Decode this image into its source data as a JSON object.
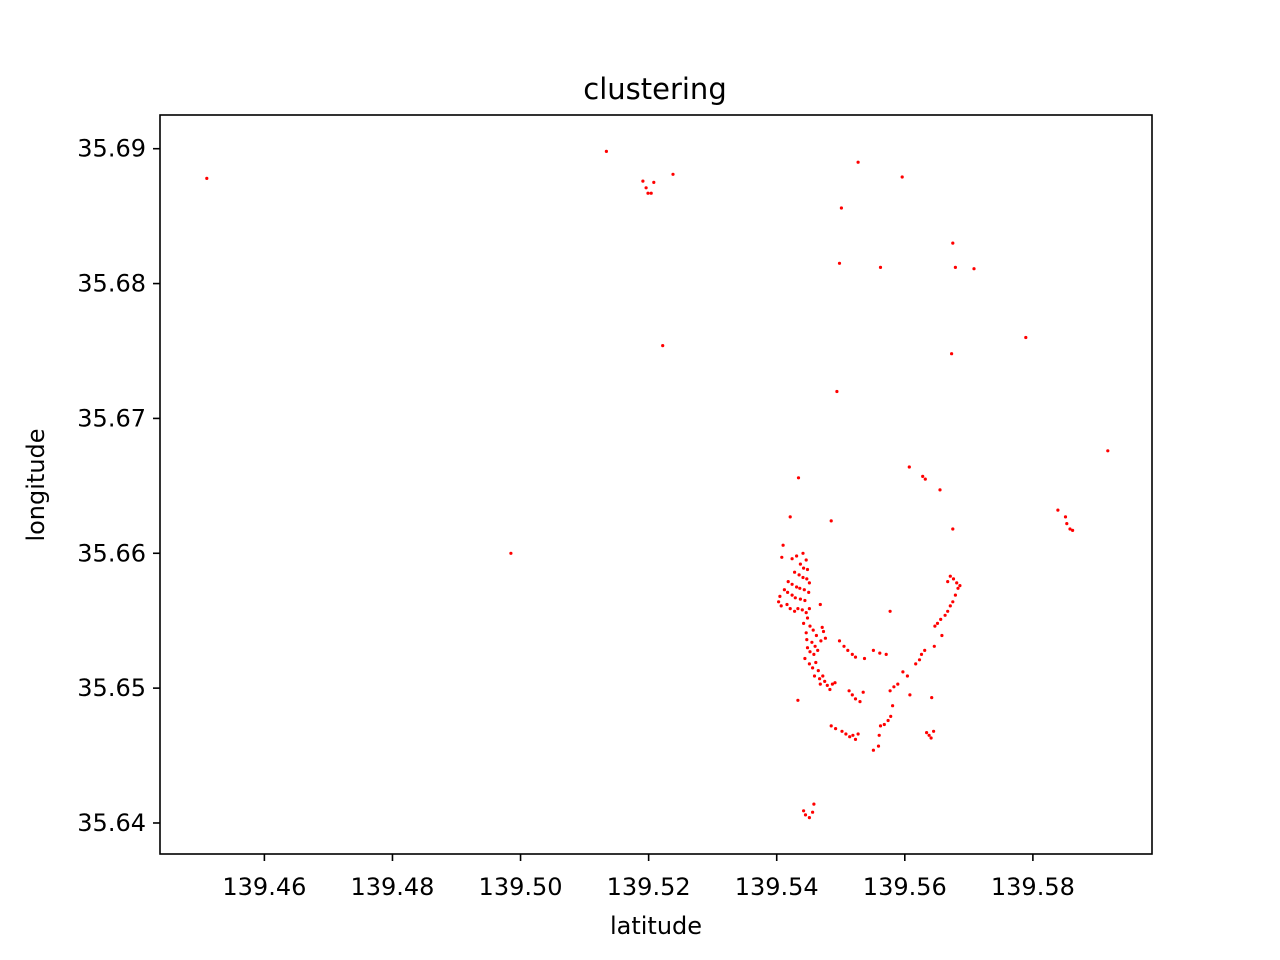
{
  "chart_data": {
    "type": "scatter",
    "title": "clustering",
    "xlabel": "latitude",
    "ylabel": "longitude",
    "xlim": [
      139.4437,
      139.5986
    ],
    "ylim": [
      35.6377,
      35.6925
    ],
    "xticks": [
      "139.46",
      "139.48",
      "139.50",
      "139.52",
      "139.54",
      "139.56",
      "139.58"
    ],
    "yticks": [
      "35.64",
      "35.65",
      "35.66",
      "35.67",
      "35.68",
      "35.69"
    ],
    "grid": false,
    "marker_color": "#ff0000",
    "series": [
      {
        "points": [
          [
            139.451,
            35.6878
          ],
          [
            139.5134,
            35.6898
          ],
          [
            139.5191,
            35.6876
          ],
          [
            139.5196,
            35.6871
          ],
          [
            139.5199,
            35.6867
          ],
          [
            139.5204,
            35.6867
          ],
          [
            139.5208,
            35.6875
          ],
          [
            139.5238,
            35.6881
          ],
          [
            139.5222,
            35.6754
          ],
          [
            139.4985,
            35.66
          ],
          [
            139.5527,
            35.689
          ],
          [
            139.5596,
            35.6879
          ],
          [
            139.5501,
            35.6856
          ],
          [
            139.5498,
            35.6815
          ],
          [
            139.5562,
            35.6812
          ],
          [
            139.5675,
            35.683
          ],
          [
            139.5679,
            35.6812
          ],
          [
            139.5708,
            35.6811
          ],
          [
            139.5673,
            35.6748
          ],
          [
            139.5789,
            35.676
          ],
          [
            139.5494,
            35.672
          ],
          [
            139.5917,
            35.6676
          ],
          [
            139.5607,
            35.6664
          ],
          [
            139.5628,
            35.6657
          ],
          [
            139.5632,
            35.6655
          ],
          [
            139.5655,
            35.6647
          ],
          [
            139.5434,
            35.6656
          ],
          [
            139.5421,
            35.6627
          ],
          [
            139.5485,
            35.6624
          ],
          [
            139.5675,
            35.6618
          ],
          [
            139.5839,
            35.6632
          ],
          [
            139.5851,
            35.6627
          ],
          [
            139.5853,
            35.6622
          ],
          [
            139.5858,
            35.6618
          ],
          [
            139.5862,
            35.6617
          ],
          [
            139.541,
            35.6606
          ],
          [
            139.5408,
            35.6597
          ],
          [
            139.5424,
            35.6596
          ],
          [
            139.5431,
            35.6598
          ],
          [
            139.5441,
            35.66
          ],
          [
            139.5446,
            35.6595
          ],
          [
            139.5437,
            35.6592
          ],
          [
            139.5442,
            35.6589
          ],
          [
            139.5448,
            35.6588
          ],
          [
            139.5428,
            35.6586
          ],
          [
            139.5435,
            35.6584
          ],
          [
            139.5441,
            35.6582
          ],
          [
            139.5447,
            35.6581
          ],
          [
            139.5451,
            35.6578
          ],
          [
            139.5418,
            35.6579
          ],
          [
            139.5424,
            35.6577
          ],
          [
            139.5431,
            35.6575
          ],
          [
            139.5436,
            35.6574
          ],
          [
            139.5443,
            35.6573
          ],
          [
            139.545,
            35.6571
          ],
          [
            139.5412,
            35.6573
          ],
          [
            139.5417,
            35.6571
          ],
          [
            139.5424,
            35.6569
          ],
          [
            139.5429,
            35.6567
          ],
          [
            139.5437,
            35.6566
          ],
          [
            139.5444,
            35.6565
          ],
          [
            139.5405,
            35.6568
          ],
          [
            139.5403,
            35.6564
          ],
          [
            139.5407,
            35.6561
          ],
          [
            139.5416,
            35.6562
          ],
          [
            139.5421,
            35.6559
          ],
          [
            139.5428,
            35.6557
          ],
          [
            139.5433,
            35.6559
          ],
          [
            139.544,
            35.6558
          ],
          [
            139.5446,
            35.6556
          ],
          [
            139.5451,
            35.6559
          ],
          [
            139.5448,
            35.6552
          ],
          [
            139.5442,
            35.6548
          ],
          [
            139.5452,
            35.6546
          ],
          [
            139.5446,
            35.6541
          ],
          [
            139.5457,
            35.6543
          ],
          [
            139.5462,
            35.6539
          ],
          [
            139.5447,
            35.6536
          ],
          [
            139.5455,
            35.6534
          ],
          [
            139.546,
            35.6531
          ],
          [
            139.5448,
            35.653
          ],
          [
            139.5452,
            35.6527
          ],
          [
            139.5458,
            35.6525
          ],
          [
            139.5464,
            35.6528
          ],
          [
            139.5444,
            35.6522
          ],
          [
            139.5451,
            35.6518
          ],
          [
            139.5456,
            35.6515
          ],
          [
            139.5461,
            35.6519
          ],
          [
            139.5465,
            35.6513
          ],
          [
            139.5459,
            35.6509
          ],
          [
            139.5467,
            35.6507
          ],
          [
            139.5472,
            35.6509
          ],
          [
            139.5468,
            35.6503
          ],
          [
            139.5475,
            35.6505
          ],
          [
            139.5479,
            35.6502
          ],
          [
            139.5483,
            35.6499
          ],
          [
            139.5487,
            35.6503
          ],
          [
            139.5491,
            35.6504
          ],
          [
            139.5468,
            35.6562
          ],
          [
            139.5471,
            35.6545
          ],
          [
            139.5473,
            35.6542
          ],
          [
            139.5476,
            35.6537
          ],
          [
            139.5469,
            35.6535
          ],
          [
            139.5498,
            35.6535
          ],
          [
            139.5505,
            35.6531
          ],
          [
            139.5511,
            35.6528
          ],
          [
            139.5518,
            35.6525
          ],
          [
            139.5523,
            35.6523
          ],
          [
            139.5537,
            35.6522
          ],
          [
            139.5551,
            35.6528
          ],
          [
            139.5561,
            35.6526
          ],
          [
            139.5571,
            35.6525
          ],
          [
            139.5577,
            35.6557
          ],
          [
            139.5433,
            35.6491
          ],
          [
            139.5485,
            35.6472
          ],
          [
            139.5492,
            35.647
          ],
          [
            139.5502,
            35.6468
          ],
          [
            139.5508,
            35.6466
          ],
          [
            139.5514,
            35.6464
          ],
          [
            139.5519,
            35.6465
          ],
          [
            139.5523,
            35.6462
          ],
          [
            139.5527,
            35.6466
          ],
          [
            139.5513,
            35.6498
          ],
          [
            139.5518,
            35.6495
          ],
          [
            139.5523,
            35.6492
          ],
          [
            139.553,
            35.649
          ],
          [
            139.5535,
            35.6497
          ],
          [
            139.5551,
            35.6454
          ],
          [
            139.5559,
            35.6457
          ],
          [
            139.556,
            35.6465
          ],
          [
            139.5562,
            35.6472
          ],
          [
            139.5568,
            35.6473
          ],
          [
            139.5574,
            35.6476
          ],
          [
            139.5578,
            35.6479
          ],
          [
            139.5581,
            35.6487
          ],
          [
            139.5577,
            35.6498
          ],
          [
            139.5583,
            35.6501
          ],
          [
            139.5589,
            35.6503
          ],
          [
            139.5597,
            35.6512
          ],
          [
            139.5604,
            35.6509
          ],
          [
            139.5608,
            35.6495
          ],
          [
            139.5617,
            35.6518
          ],
          [
            139.5623,
            35.6521
          ],
          [
            139.5626,
            35.6525
          ],
          [
            139.5631,
            35.6528
          ],
          [
            139.5646,
            35.6531
          ],
          [
            139.5642,
            35.6493
          ],
          [
            139.5634,
            35.6467
          ],
          [
            139.5638,
            35.6465
          ],
          [
            139.5641,
            35.6463
          ],
          [
            139.5645,
            35.6468
          ],
          [
            139.5658,
            35.6539
          ],
          [
            139.5647,
            35.6546
          ],
          [
            139.5651,
            35.6548
          ],
          [
            139.5656,
            35.6551
          ],
          [
            139.5663,
            35.6554
          ],
          [
            139.5667,
            35.6557
          ],
          [
            139.5671,
            35.6561
          ],
          [
            139.5675,
            35.6564
          ],
          [
            139.5679,
            35.6569
          ],
          [
            139.5683,
            35.6574
          ],
          [
            139.5686,
            35.6576
          ],
          [
            139.5681,
            35.6578
          ],
          [
            139.5676,
            35.6581
          ],
          [
            139.5671,
            35.6583
          ],
          [
            139.5667,
            35.6579
          ],
          [
            139.5445,
            35.6406
          ],
          [
            139.5451,
            35.6404
          ],
          [
            139.5456,
            35.6408
          ],
          [
            139.5458,
            35.6414
          ],
          [
            139.5442,
            35.6409
          ]
        ]
      }
    ]
  }
}
